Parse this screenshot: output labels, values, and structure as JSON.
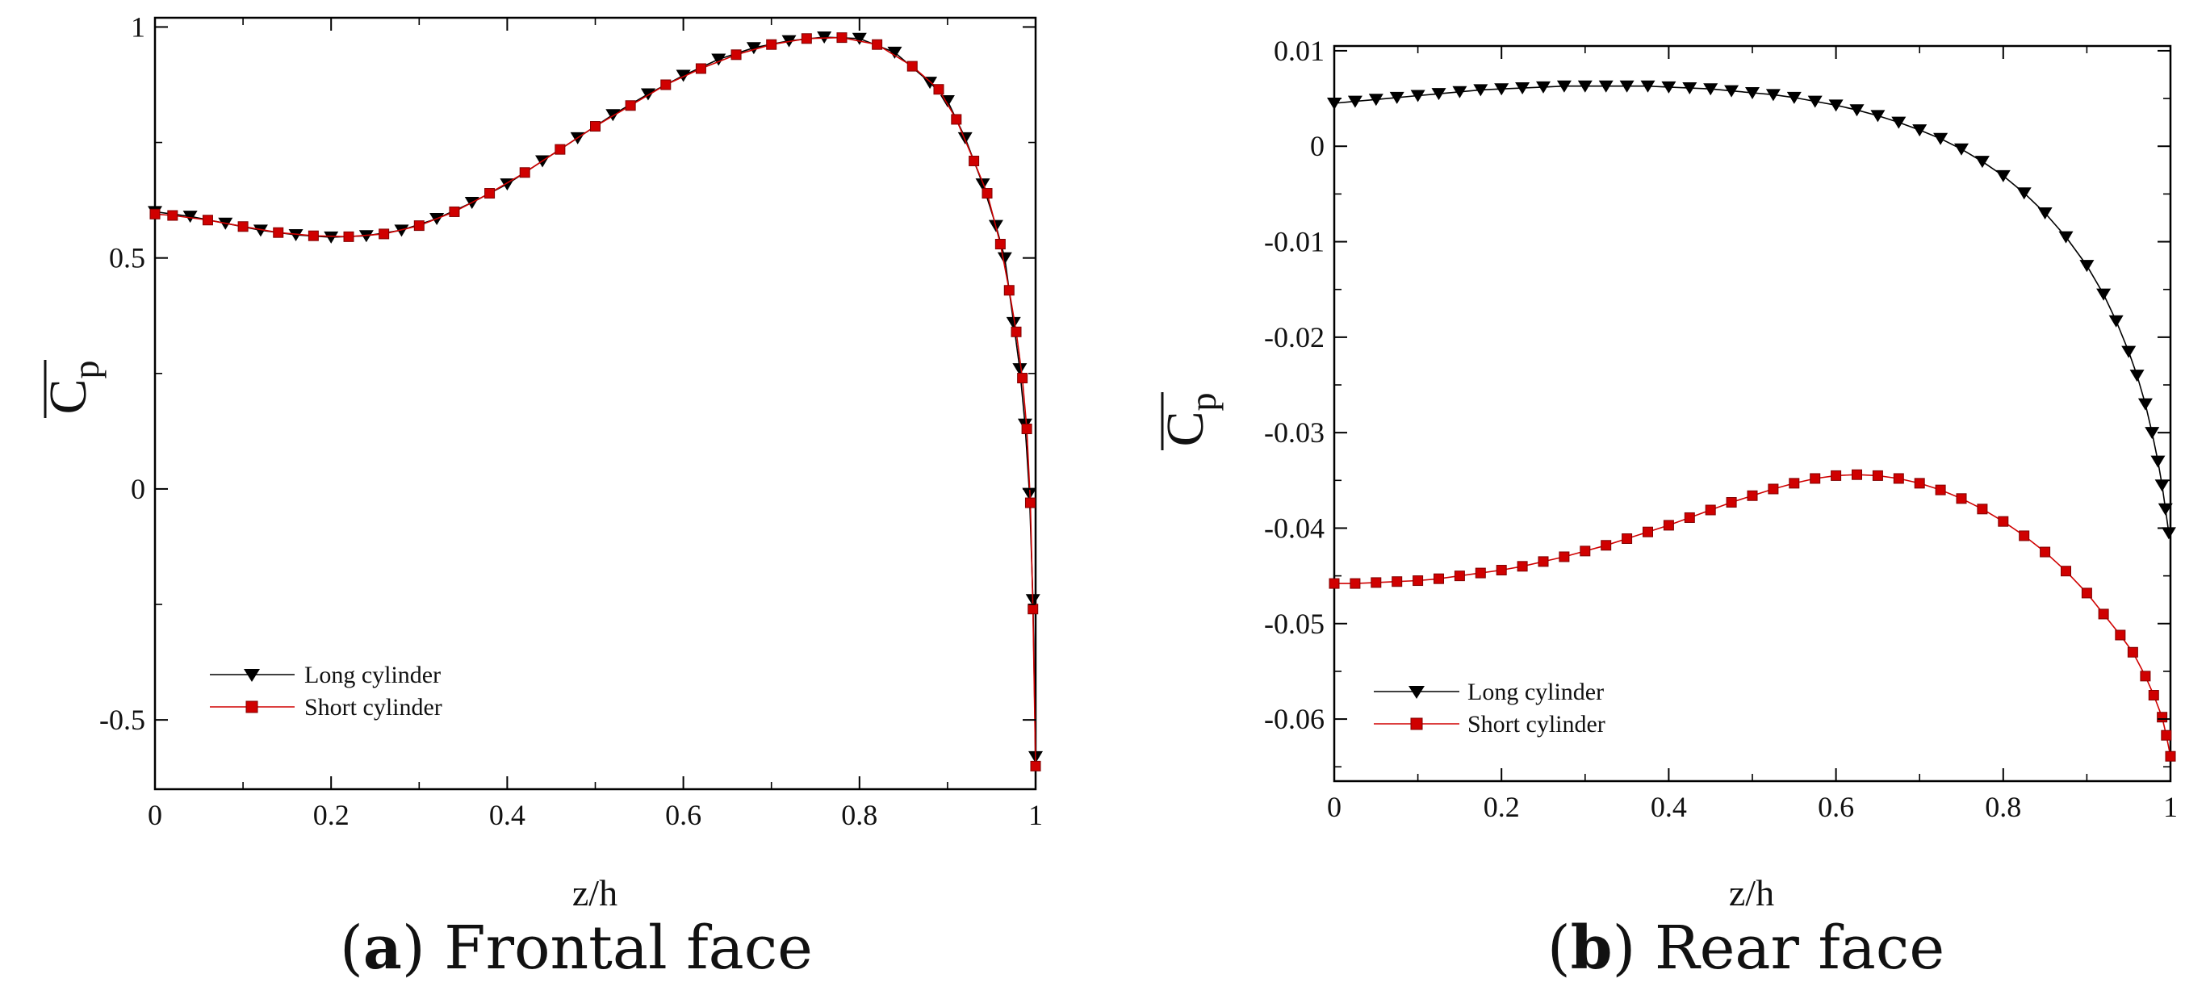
{
  "chart_data": [
    {
      "type": "line",
      "caption_letter": "a",
      "caption_text": "Frontal face",
      "xlabel": "z/h",
      "ylabel_main": "C",
      "ylabel_sub": "p",
      "xlim": [
        0,
        1
      ],
      "ylim": [
        -0.65,
        1.02
      ],
      "xticks": [
        0,
        0.2,
        0.4,
        0.6,
        0.8,
        1
      ],
      "xtick_labels": [
        "0",
        "0.2",
        "0.4",
        "0.6",
        "0.8",
        "1"
      ],
      "yticks": [
        -0.5,
        0,
        0.5,
        1
      ],
      "ytick_labels": [
        "-0.5",
        "0",
        "0.5",
        "1"
      ],
      "legend": [
        "Long cylinder",
        "Short cylinder"
      ],
      "series": [
        {
          "name": "Long cylinder",
          "color": "#000000",
          "marker": "triangle-down",
          "x": [
            0.0,
            0.04,
            0.08,
            0.12,
            0.16,
            0.2,
            0.24,
            0.28,
            0.32,
            0.36,
            0.4,
            0.44,
            0.48,
            0.52,
            0.56,
            0.6,
            0.64,
            0.68,
            0.72,
            0.76,
            0.8,
            0.84,
            0.88,
            0.9,
            0.92,
            0.94,
            0.955,
            0.965,
            0.975,
            0.982,
            0.988,
            0.993,
            0.997,
            1.0
          ],
          "y": [
            0.6,
            0.59,
            0.575,
            0.56,
            0.55,
            0.545,
            0.548,
            0.56,
            0.585,
            0.62,
            0.66,
            0.71,
            0.76,
            0.81,
            0.855,
            0.895,
            0.93,
            0.955,
            0.97,
            0.978,
            0.975,
            0.945,
            0.88,
            0.84,
            0.76,
            0.66,
            0.57,
            0.5,
            0.36,
            0.26,
            0.14,
            -0.01,
            -0.24,
            -0.58
          ]
        },
        {
          "name": "Short cylinder",
          "color": "#d00000",
          "marker": "square",
          "x": [
            0.0,
            0.02,
            0.06,
            0.1,
            0.14,
            0.18,
            0.22,
            0.26,
            0.3,
            0.34,
            0.38,
            0.42,
            0.46,
            0.5,
            0.54,
            0.58,
            0.62,
            0.66,
            0.7,
            0.74,
            0.78,
            0.82,
            0.86,
            0.89,
            0.91,
            0.93,
            0.945,
            0.96,
            0.97,
            0.978,
            0.985,
            0.99,
            0.994,
            0.997,
            1.0
          ],
          "y": [
            0.595,
            0.592,
            0.582,
            0.568,
            0.555,
            0.548,
            0.546,
            0.552,
            0.57,
            0.6,
            0.64,
            0.685,
            0.735,
            0.785,
            0.83,
            0.875,
            0.91,
            0.94,
            0.962,
            0.975,
            0.977,
            0.962,
            0.915,
            0.865,
            0.8,
            0.71,
            0.64,
            0.53,
            0.43,
            0.34,
            0.24,
            0.13,
            -0.03,
            -0.26,
            -0.6
          ]
        }
      ]
    },
    {
      "type": "line",
      "caption_letter": "b",
      "caption_text": "Rear face",
      "xlabel": "z/h",
      "ylabel_main": "C",
      "ylabel_sub": "p",
      "xlim": [
        0,
        1
      ],
      "ylim": [
        -0.0665,
        0.0105
      ],
      "xticks": [
        0,
        0.2,
        0.4,
        0.6,
        0.8,
        1
      ],
      "xtick_labels": [
        "0",
        "0.2",
        "0.4",
        "0.6",
        "0.8",
        "1"
      ],
      "yticks": [
        0.01,
        0,
        -0.01,
        -0.02,
        -0.03,
        -0.04,
        -0.05,
        -0.06
      ],
      "ytick_labels": [
        "0.01",
        "0",
        "-0.01",
        "-0.02",
        "-0.03",
        "-0.04",
        "-0.05",
        "-0.06"
      ],
      "legend": [
        "Long cylinder",
        "Short cylinder"
      ],
      "series": [
        {
          "name": "Long cylinder",
          "color": "#000000",
          "marker": "triangle-down",
          "x": [
            0.0,
            0.025,
            0.05,
            0.075,
            0.1,
            0.125,
            0.15,
            0.175,
            0.2,
            0.225,
            0.25,
            0.275,
            0.3,
            0.325,
            0.35,
            0.375,
            0.4,
            0.425,
            0.45,
            0.475,
            0.5,
            0.525,
            0.55,
            0.575,
            0.6,
            0.625,
            0.65,
            0.675,
            0.7,
            0.725,
            0.75,
            0.775,
            0.8,
            0.825,
            0.85,
            0.875,
            0.9,
            0.92,
            0.935,
            0.95,
            0.96,
            0.97,
            0.978,
            0.985,
            0.99,
            0.994,
            0.998
          ],
          "y": [
            0.0045,
            0.0047,
            0.0049,
            0.0051,
            0.0053,
            0.0055,
            0.0057,
            0.0059,
            0.006,
            0.0061,
            0.0062,
            0.0063,
            0.0063,
            0.0063,
            0.0063,
            0.0063,
            0.0062,
            0.0061,
            0.006,
            0.0058,
            0.0056,
            0.0054,
            0.0051,
            0.0047,
            0.0043,
            0.0038,
            0.0032,
            0.0025,
            0.0017,
            0.0008,
            -0.0003,
            -0.0016,
            -0.0031,
            -0.0049,
            -0.007,
            -0.0095,
            -0.0125,
            -0.0155,
            -0.0183,
            -0.0215,
            -0.024,
            -0.027,
            -0.03,
            -0.033,
            -0.0355,
            -0.038,
            -0.0405
          ]
        },
        {
          "name": "Short cylinder",
          "color": "#d00000",
          "marker": "square",
          "x": [
            0.0,
            0.025,
            0.05,
            0.075,
            0.1,
            0.125,
            0.15,
            0.175,
            0.2,
            0.225,
            0.25,
            0.275,
            0.3,
            0.325,
            0.35,
            0.375,
            0.4,
            0.425,
            0.45,
            0.475,
            0.5,
            0.525,
            0.55,
            0.575,
            0.6,
            0.625,
            0.65,
            0.675,
            0.7,
            0.725,
            0.75,
            0.775,
            0.8,
            0.825,
            0.85,
            0.875,
            0.9,
            0.92,
            0.94,
            0.955,
            0.97,
            0.98,
            0.99,
            0.995,
            1.0
          ],
          "y": [
            -0.0458,
            -0.0458,
            -0.0457,
            -0.0456,
            -0.0455,
            -0.0453,
            -0.045,
            -0.0447,
            -0.0444,
            -0.044,
            -0.0435,
            -0.043,
            -0.0424,
            -0.0418,
            -0.0411,
            -0.0404,
            -0.0397,
            -0.0389,
            -0.0381,
            -0.0373,
            -0.0366,
            -0.0359,
            -0.0353,
            -0.0348,
            -0.0345,
            -0.0344,
            -0.0345,
            -0.0348,
            -0.0353,
            -0.036,
            -0.0369,
            -0.038,
            -0.0393,
            -0.0408,
            -0.0425,
            -0.0445,
            -0.0468,
            -0.049,
            -0.0512,
            -0.053,
            -0.0555,
            -0.0575,
            -0.0598,
            -0.0617,
            -0.0639
          ]
        }
      ]
    }
  ]
}
